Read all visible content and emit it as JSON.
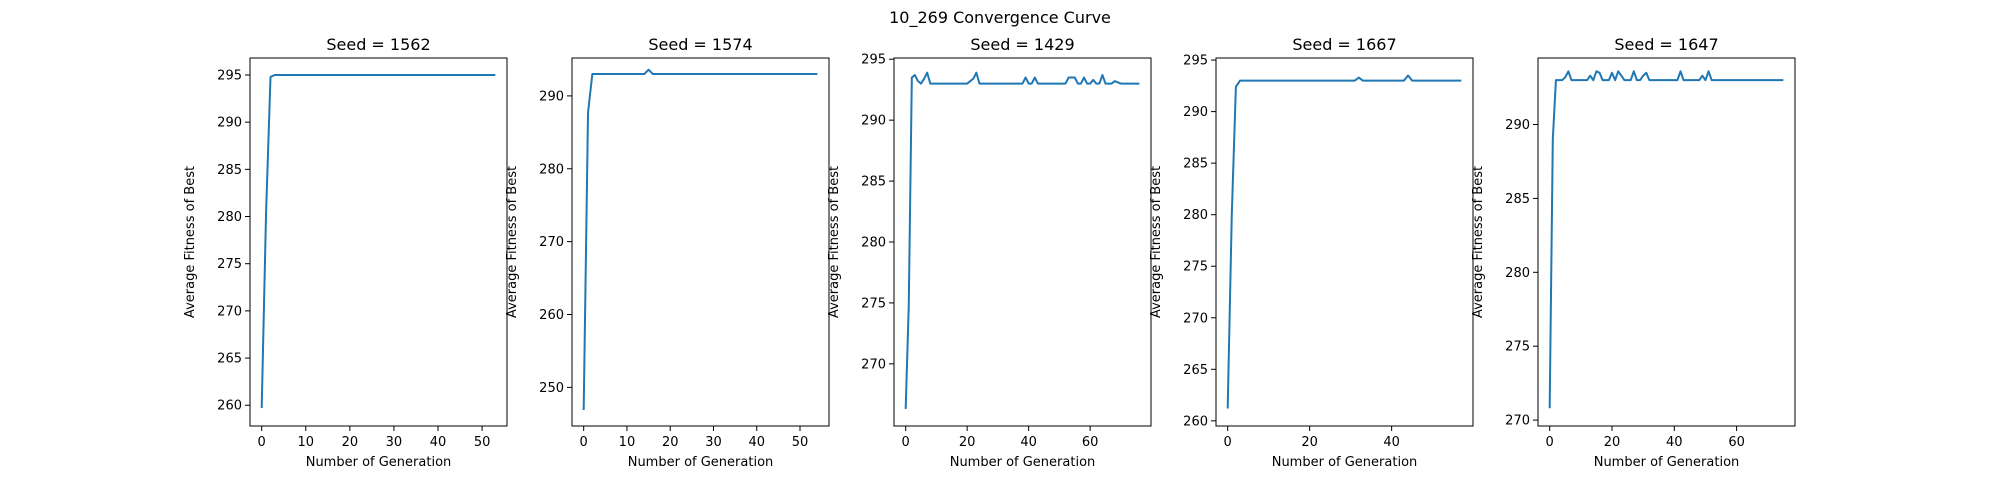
{
  "figure_title": "10_269 Convergence Curve",
  "line_color": "#1f77b4",
  "chart_data": [
    {
      "type": "line",
      "title": "Seed = 1562",
      "xlabel": "Number of Generation",
      "ylabel": "Average Fitness of Best",
      "xlim": [
        -2.65,
        55.65
      ],
      "ylim": [
        257.8,
        296.8
      ],
      "xticks": [
        0,
        10,
        20,
        30,
        40,
        50
      ],
      "yticks": [
        260,
        265,
        270,
        275,
        280,
        285,
        290,
        295
      ],
      "series": [
        {
          "x": [
            0,
            1,
            2,
            3,
            4,
            10,
            20,
            30,
            40,
            53
          ],
          "y": [
            259.7,
            280.5,
            294.8,
            295.0,
            295.0,
            295.0,
            295.0,
            295.0,
            295.0,
            295.0
          ]
        }
      ]
    },
    {
      "type": "line",
      "title": "Seed = 1574",
      "xlabel": "Number of Generation",
      "ylabel": "Average Fitness of Best",
      "xlim": [
        -2.7,
        56.7
      ],
      "ylim": [
        244.7,
        295.2
      ],
      "xticks": [
        0,
        10,
        20,
        30,
        40,
        50
      ],
      "yticks": [
        250,
        260,
        270,
        280,
        290
      ],
      "series": [
        {
          "x": [
            0,
            1,
            2,
            3,
            10,
            14,
            15,
            16,
            20,
            30,
            40,
            54
          ],
          "y": [
            246.9,
            287.7,
            293.0,
            293.0,
            293.0,
            293.0,
            293.6,
            293.0,
            293.0,
            293.0,
            293.0,
            293.0
          ]
        }
      ]
    },
    {
      "type": "line",
      "title": "Seed = 1429",
      "xlabel": "Number of Generation",
      "ylabel": "Average Fitness of Best",
      "xlim": [
        -3.8,
        79.8
      ],
      "ylim": [
        264.9,
        295.1
      ],
      "xticks": [
        0,
        20,
        40,
        60
      ],
      "yticks": [
        270,
        275,
        280,
        285,
        290,
        295
      ],
      "series": [
        {
          "x": [
            0,
            1,
            2,
            3,
            4,
            5,
            6,
            7,
            8,
            12,
            16,
            20,
            22,
            23,
            24,
            30,
            38,
            39,
            40,
            41,
            42,
            43,
            44,
            50,
            52,
            53,
            54,
            55,
            56,
            57,
            58,
            59,
            60,
            61,
            62,
            63,
            64,
            65,
            66,
            67,
            68,
            70,
            72,
            76
          ],
          "y": [
            266.3,
            274.8,
            293.5,
            293.7,
            293.2,
            293.0,
            293.4,
            293.9,
            293.0,
            293.0,
            293.0,
            293.0,
            293.4,
            293.9,
            293.0,
            293.0,
            293.0,
            293.5,
            293.0,
            293.0,
            293.5,
            293.0,
            293.0,
            293.0,
            293.0,
            293.5,
            293.5,
            293.5,
            293.0,
            293.0,
            293.5,
            293.0,
            293.0,
            293.3,
            293.0,
            293.0,
            293.7,
            293.0,
            293.0,
            293.0,
            293.2,
            293.0,
            293.0,
            293.0
          ]
        }
      ]
    },
    {
      "type": "line",
      "title": "Seed = 1667",
      "xlabel": "Number of Generation",
      "ylabel": "Average Fitness of Best",
      "xlim": [
        -2.85,
        59.85
      ],
      "ylim": [
        259.5,
        295.2
      ],
      "xticks": [
        0,
        20,
        40
      ],
      "yticks": [
        260,
        265,
        270,
        275,
        280,
        285,
        290,
        295
      ],
      "series": [
        {
          "x": [
            0,
            1,
            2,
            3,
            4,
            10,
            20,
            30,
            31,
            32,
            33,
            40,
            43,
            44,
            45,
            50,
            57
          ],
          "y": [
            261.2,
            280.0,
            292.4,
            293.0,
            293.0,
            293.0,
            293.0,
            293.0,
            293.0,
            293.3,
            293.0,
            293.0,
            293.0,
            293.5,
            293.0,
            293.0,
            293.0
          ]
        }
      ]
    },
    {
      "type": "line",
      "title": "Seed = 1647",
      "xlabel": "Number of Generation",
      "ylabel": "Average Fitness of Best",
      "xlim": [
        -3.75,
        78.75
      ],
      "ylim": [
        269.6,
        294.5
      ],
      "xticks": [
        0,
        20,
        40,
        60
      ],
      "yticks": [
        270,
        275,
        280,
        285,
        290
      ],
      "series": [
        {
          "x": [
            0,
            1,
            2,
            3,
            4,
            5,
            6,
            7,
            8,
            12,
            13,
            14,
            15,
            16,
            17,
            18,
            19,
            20,
            21,
            22,
            23,
            24,
            25,
            26,
            27,
            28,
            29,
            30,
            31,
            32,
            33,
            36,
            40,
            41,
            42,
            43,
            44,
            48,
            49,
            50,
            51,
            52,
            53,
            60,
            75
          ],
          "y": [
            270.8,
            289.0,
            293.0,
            293.0,
            293.0,
            293.2,
            293.6,
            293.0,
            293.0,
            293.0,
            293.3,
            293.0,
            293.6,
            293.5,
            293.0,
            293.0,
            293.0,
            293.5,
            293.0,
            293.6,
            293.3,
            293.0,
            293.0,
            293.0,
            293.6,
            293.0,
            293.0,
            293.3,
            293.5,
            293.0,
            293.0,
            293.0,
            293.0,
            293.0,
            293.6,
            293.0,
            293.0,
            293.0,
            293.3,
            293.0,
            293.6,
            293.0,
            293.0,
            293.0,
            293.0
          ]
        }
      ]
    }
  ]
}
